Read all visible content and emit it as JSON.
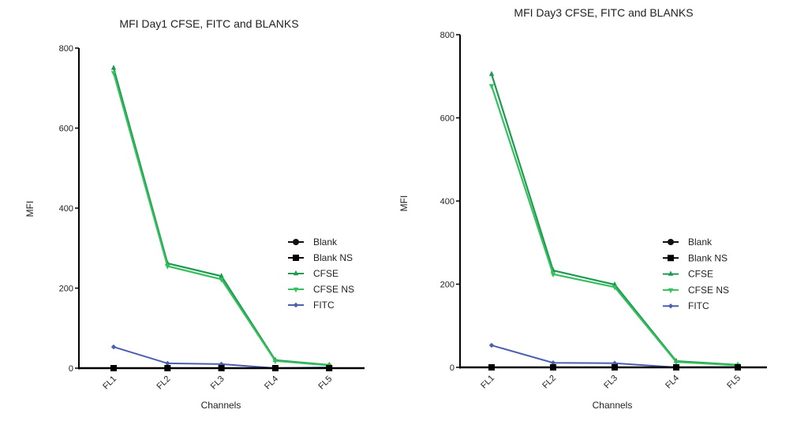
{
  "colors": {
    "Blank": "#111111",
    "Blank NS": "#000000",
    "CFSE": "#1e9a52",
    "CFSE NS": "#35c05c",
    "FITC": "#4a5fae",
    "axis": "#000000"
  },
  "chart_data": [
    {
      "type": "line",
      "title": "MFI Day1 CFSE, FITC and BLANKS",
      "xlabel": "Channels",
      "ylabel": "MFI",
      "ylim": [
        0,
        800
      ],
      "yticks": [
        "0",
        "200",
        "400",
        "600",
        "800"
      ],
      "categories": [
        "FL1",
        "FL2",
        "FL3",
        "FL4",
        "FL5"
      ],
      "legend_position": "right",
      "series": [
        {
          "name": "Blank",
          "marker": "circle",
          "values": [
            0,
            0,
            0,
            0,
            0
          ]
        },
        {
          "name": "Blank NS",
          "marker": "square",
          "values": [
            0,
            0,
            0,
            0,
            0
          ]
        },
        {
          "name": "CFSE",
          "marker": "triangle-up",
          "values": [
            750,
            262,
            230,
            20,
            8
          ]
        },
        {
          "name": "CFSE NS",
          "marker": "triangle-down",
          "values": [
            738,
            255,
            222,
            18,
            7
          ]
        },
        {
          "name": "FITC",
          "marker": "diamond",
          "values": [
            53,
            12,
            10,
            0,
            2
          ]
        }
      ]
    },
    {
      "type": "line",
      "title": "MFI Day3 CFSE, FITC and BLANKS",
      "xlabel": "Channels",
      "ylabel": "MFI",
      "ylim": [
        0,
        800
      ],
      "yticks": [
        "0",
        "200",
        "400",
        "600",
        "800"
      ],
      "categories": [
        "FL1",
        "FL2",
        "FL3",
        "FL4",
        "FL5"
      ],
      "legend_position": "right",
      "series": [
        {
          "name": "Blank",
          "marker": "circle",
          "values": [
            0,
            0,
            0,
            0,
            0
          ]
        },
        {
          "name": "Blank NS",
          "marker": "square",
          "values": [
            0,
            0,
            0,
            0,
            0
          ]
        },
        {
          "name": "CFSE",
          "marker": "triangle-up",
          "values": [
            705,
            233,
            199,
            15,
            6
          ]
        },
        {
          "name": "CFSE NS",
          "marker": "triangle-down",
          "values": [
            677,
            224,
            193,
            13,
            5
          ]
        },
        {
          "name": "FITC",
          "marker": "diamond",
          "values": [
            53,
            11,
            10,
            0,
            1
          ]
        }
      ]
    }
  ]
}
